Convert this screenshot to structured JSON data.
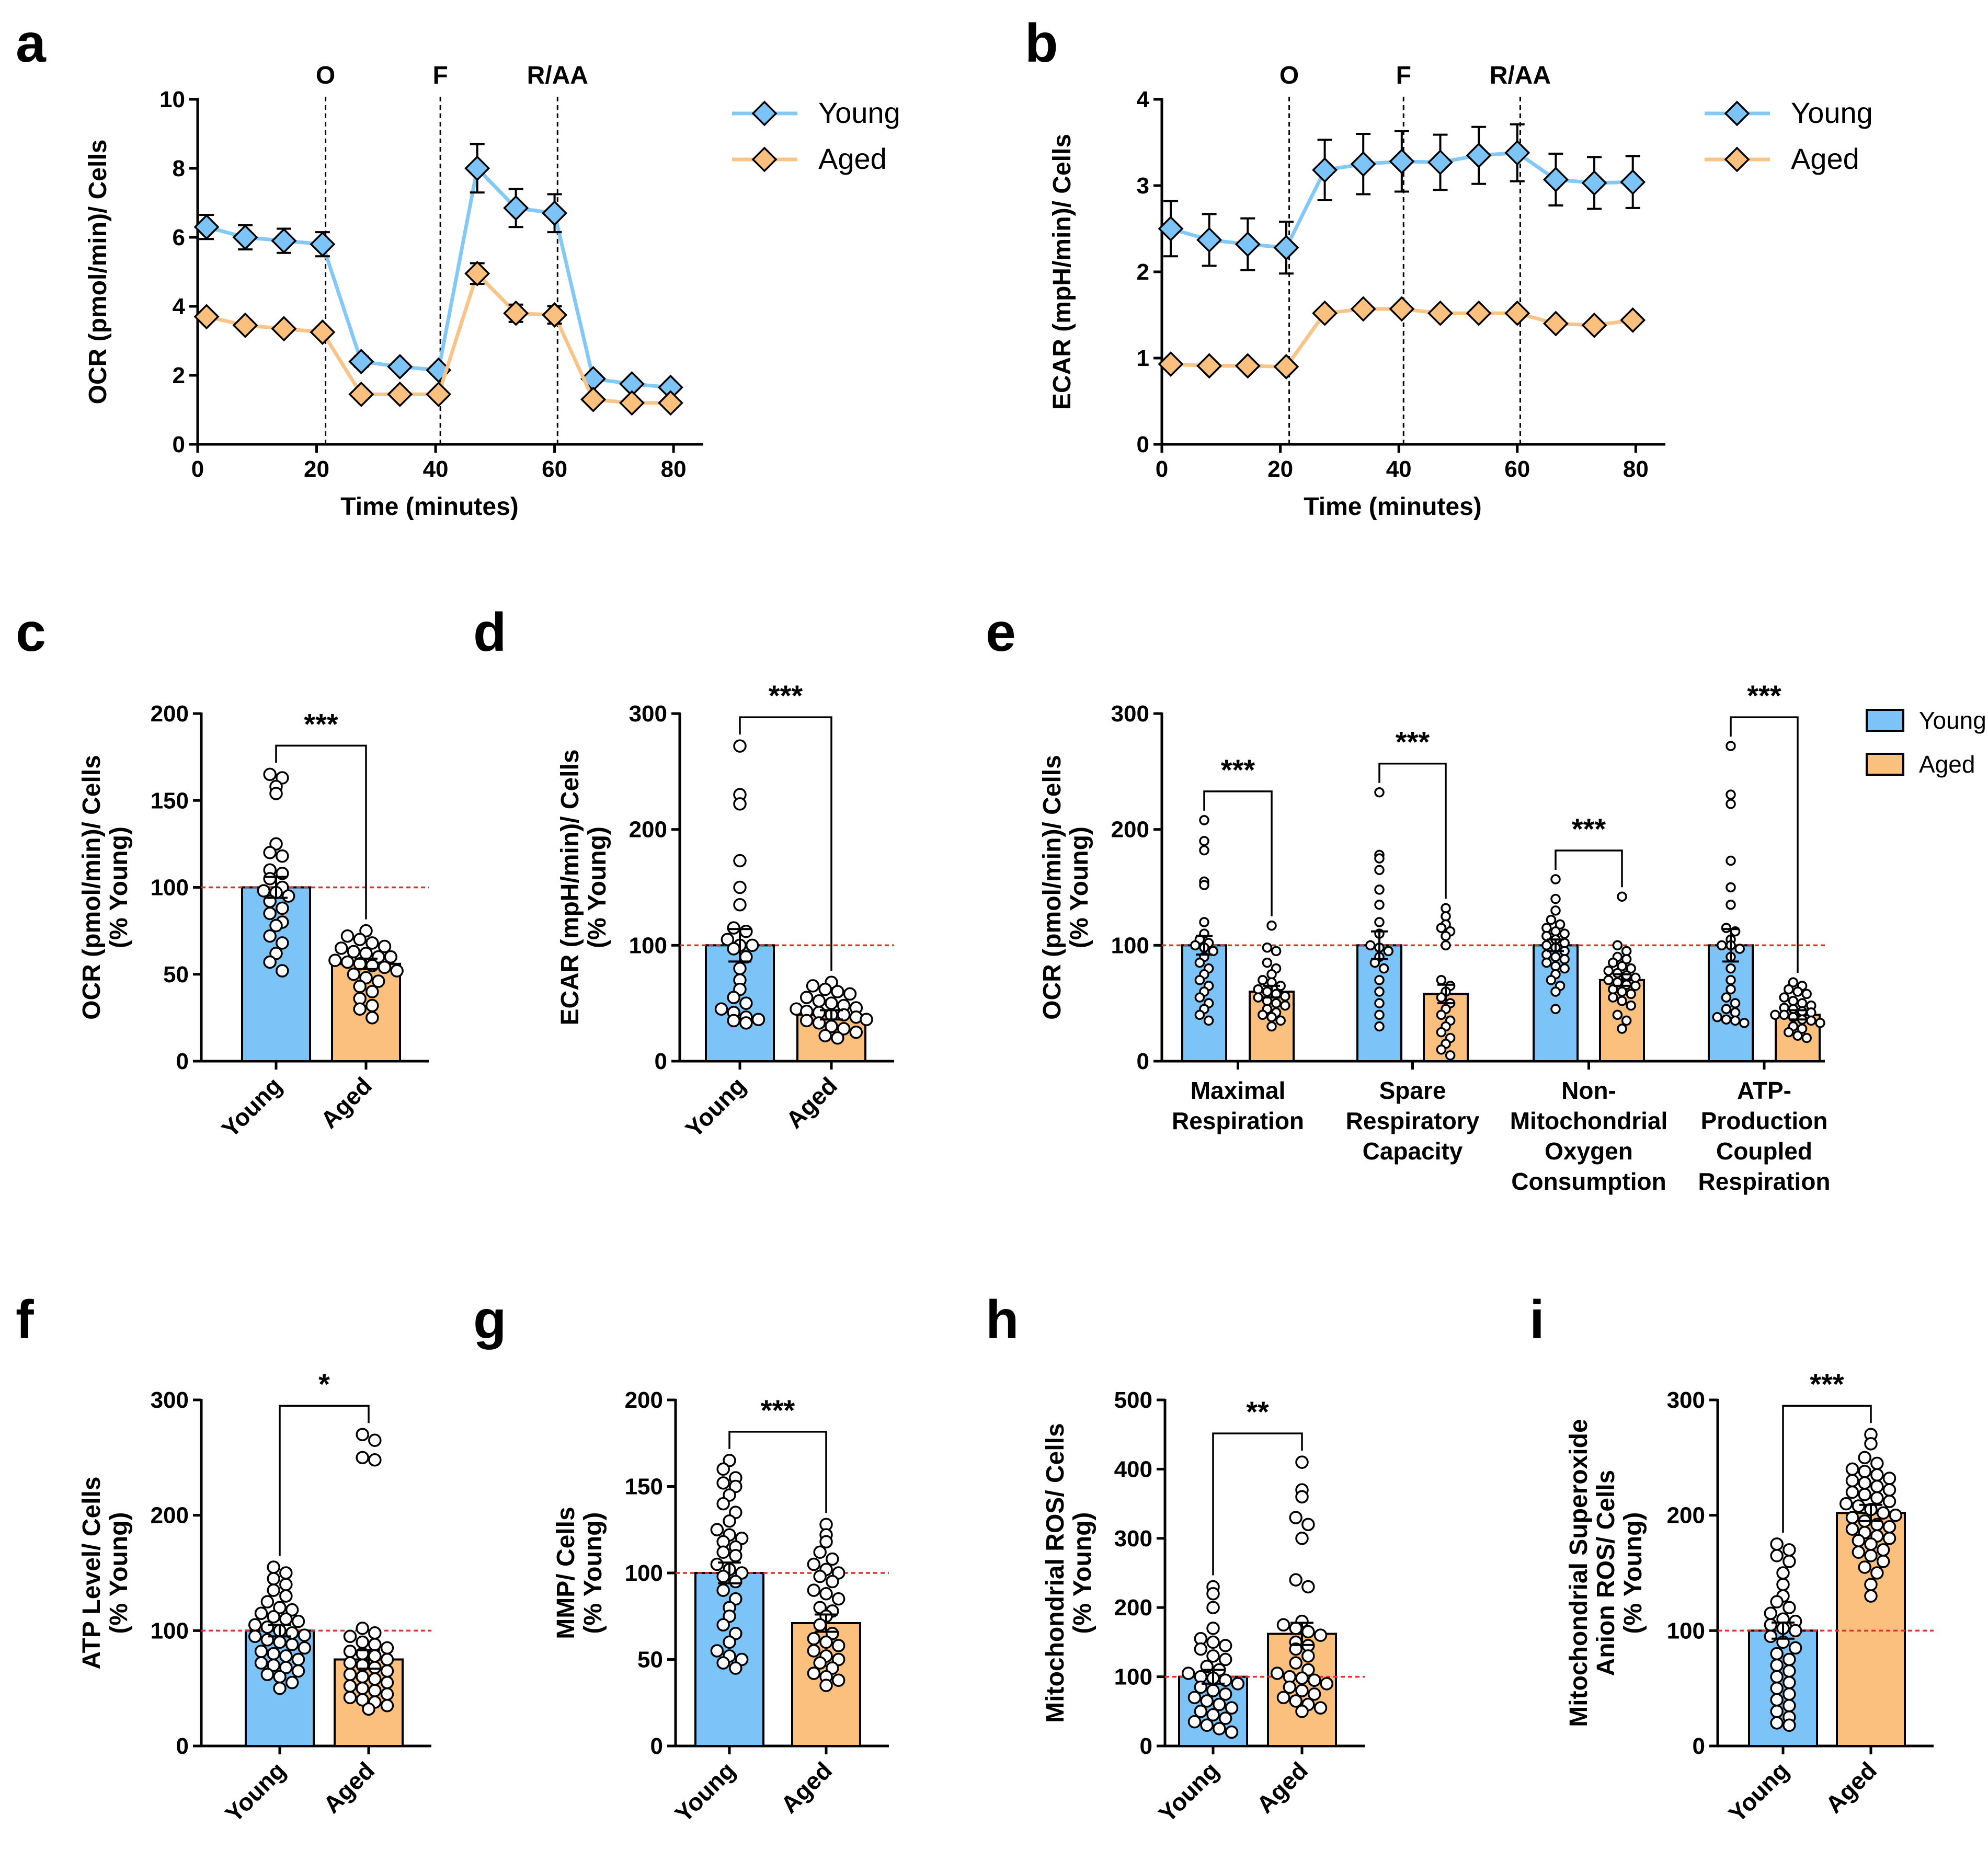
{
  "colors": {
    "young": "#7cc4f8",
    "aged": "#fbbf7e",
    "young_line": "#84c8f6",
    "aged_line": "#f9c48a",
    "ref_line": "#e03030"
  },
  "chart_data": [
    {
      "id": "a",
      "letter": "a",
      "type": "line",
      "xlabel": "Time (minutes)",
      "ylabel": "OCR (pmol/min)/ Cells",
      "xlim": [
        0,
        85
      ],
      "ylim": [
        0,
        10
      ],
      "xticks": [
        "0",
        "20",
        "40",
        "60",
        "80"
      ],
      "yticks": [
        "0",
        "2",
        "4",
        "6",
        "8",
        "10"
      ],
      "injections": [
        {
          "label": "O",
          "x": 21.5
        },
        {
          "label": "F",
          "x": 40.8
        },
        {
          "label": "R/AA",
          "x": 60.5
        }
      ],
      "x": [
        1.5,
        8,
        14.5,
        21,
        27.5,
        34,
        40.5,
        47,
        53.5,
        60,
        66.5,
        73,
        79.5
      ],
      "series": [
        {
          "name": "Young",
          "values": [
            6.3,
            6.0,
            5.9,
            5.8,
            2.4,
            2.25,
            2.15,
            8.0,
            6.85,
            6.7,
            1.9,
            1.75,
            1.65
          ],
          "errors": [
            0.35,
            0.35,
            0.35,
            0.35,
            0.15,
            0.12,
            0.12,
            0.7,
            0.55,
            0.55,
            0.12,
            0.12,
            0.1
          ]
        },
        {
          "name": "Aged",
          "values": [
            3.7,
            3.45,
            3.35,
            3.25,
            1.45,
            1.45,
            1.45,
            4.95,
            3.8,
            3.75,
            1.3,
            1.2,
            1.2
          ],
          "errors": [
            0.1,
            0.1,
            0.1,
            0.1,
            0.05,
            0.05,
            0.05,
            0.3,
            0.25,
            0.25,
            0.05,
            0.05,
            0.05
          ]
        }
      ],
      "legend": [
        "Young",
        "Aged"
      ]
    },
    {
      "id": "b",
      "letter": "b",
      "type": "line",
      "xlabel": "Time (minutes)",
      "ylabel": "ECAR (mpH/min)/ Cells",
      "xlim": [
        0,
        85
      ],
      "ylim": [
        0,
        4
      ],
      "xticks": [
        "0",
        "20",
        "40",
        "60",
        "80"
      ],
      "yticks": [
        "0",
        "1",
        "2",
        "3",
        "4"
      ],
      "injections": [
        {
          "label": "O",
          "x": 21.5
        },
        {
          "label": "F",
          "x": 40.8
        },
        {
          "label": "R/AA",
          "x": 60.5
        }
      ],
      "x": [
        1.5,
        8,
        14.5,
        21,
        27.5,
        34,
        40.5,
        47,
        53.5,
        60,
        66.5,
        73,
        79.5
      ],
      "series": [
        {
          "name": "Young",
          "values": [
            2.5,
            2.37,
            2.32,
            2.28,
            3.18,
            3.25,
            3.28,
            3.27,
            3.35,
            3.38,
            3.07,
            3.03,
            3.04
          ],
          "errors": [
            0.32,
            0.3,
            0.3,
            0.3,
            0.35,
            0.35,
            0.35,
            0.32,
            0.33,
            0.33,
            0.3,
            0.3,
            0.3
          ]
        },
        {
          "name": "Aged",
          "values": [
            0.93,
            0.91,
            0.91,
            0.9,
            1.52,
            1.57,
            1.57,
            1.52,
            1.52,
            1.52,
            1.4,
            1.38,
            1.44
          ],
          "errors": [
            0.04,
            0.04,
            0.04,
            0.04,
            0.05,
            0.05,
            0.05,
            0.05,
            0.05,
            0.05,
            0.05,
            0.05,
            0.05
          ]
        }
      ],
      "legend": [
        "Young",
        "Aged"
      ]
    },
    {
      "id": "c",
      "letter": "c",
      "type": "bar",
      "ylabel": [
        "OCR (pmol/min)/ Cells",
        "(% Young)"
      ],
      "ylim": [
        0,
        200
      ],
      "yticks": [
        "0",
        "50",
        "100",
        "150",
        "200"
      ],
      "categories": [
        "Young",
        "Aged"
      ],
      "values": [
        100,
        56
      ],
      "errors": [
        6,
        3
      ],
      "points": [
        [
          165,
          163,
          158,
          154,
          125,
          120,
          118,
          110,
          108,
          105,
          100,
          98,
          97,
          95,
          92,
          88,
          85,
          80,
          78,
          72,
          68,
          62,
          57,
          52
        ],
        [
          75,
          72,
          70,
          68,
          66,
          65,
          63,
          62,
          60,
          60,
          58,
          57,
          56,
          55,
          54,
          52,
          50,
          48,
          46,
          43,
          40,
          36,
          32,
          30,
          25
        ]
      ],
      "significance": [
        {
          "label": "***"
        }
      ],
      "reference": 100
    },
    {
      "id": "d",
      "letter": "d",
      "type": "bar",
      "ylabel": [
        "ECAR (mpH/min)/ Cells",
        "(% Young)"
      ],
      "ylim": [
        0,
        300
      ],
      "yticks": [
        "0",
        "100",
        "200",
        "300"
      ],
      "categories": [
        "Young",
        "Aged"
      ],
      "values": [
        100,
        40
      ],
      "errors": [
        14,
        4
      ],
      "points": [
        [
          272,
          230,
          222,
          173,
          150,
          135,
          115,
          112,
          105,
          100,
          100,
          97,
          90,
          80,
          70,
          62,
          55,
          50,
          45,
          42,
          38,
          36,
          35,
          33
        ],
        [
          68,
          65,
          62,
          60,
          58,
          55,
          52,
          50,
          48,
          46,
          45,
          43,
          42,
          40,
          40,
          38,
          36,
          35,
          33,
          30,
          28,
          25,
          22,
          20
        ]
      ],
      "significance": [
        {
          "label": "***"
        }
      ],
      "reference": 100
    },
    {
      "id": "e",
      "letter": "e",
      "type": "bar",
      "ylabel": [
        "OCR (pmol/min)/ Cells",
        "(% Young)"
      ],
      "ylim": [
        0,
        300
      ],
      "yticks": [
        "0",
        "100",
        "200",
        "300"
      ],
      "categories": [
        [
          "Maximal",
          "Respiration"
        ],
        [
          "Spare",
          "Respiratory",
          "Capacity"
        ],
        [
          "Non-",
          "Mitochondrial",
          "Oxygen",
          "Consumption"
        ],
        [
          "ATP-",
          "Production",
          "Coupled",
          "Respiration"
        ]
      ],
      "series": [
        {
          "name": "Young",
          "values": [
            100,
            100,
            100,
            100
          ],
          "errors": [
            8,
            12,
            5,
            14
          ]
        },
        {
          "name": "Aged",
          "values": [
            60,
            58,
            70,
            40
          ],
          "errors": [
            5,
            8,
            5,
            4
          ]
        }
      ],
      "points": [
        [
          [
            208,
            190,
            182,
            155,
            152,
            120,
            110,
            105,
            102,
            100,
            98,
            95,
            90,
            85,
            80,
            75,
            70,
            65,
            60,
            55,
            50,
            45,
            40,
            35
          ],
          [
            117,
            98,
            95,
            85,
            80,
            75,
            70,
            68,
            65,
            62,
            60,
            58,
            56,
            55,
            52,
            50,
            48,
            45,
            42,
            40,
            38,
            35,
            30
          ]
        ],
        [
          [
            232,
            178,
            175,
            165,
            148,
            135,
            120,
            110,
            100,
            98,
            95,
            90,
            85,
            80,
            70,
            60,
            50,
            40,
            30
          ],
          [
            132,
            125,
            118,
            115,
            112,
            108,
            100,
            70,
            65,
            60,
            55,
            50,
            45,
            40,
            35,
            30,
            25,
            20,
            15,
            10,
            5
          ]
        ],
        [
          [
            157,
            140,
            130,
            122,
            118,
            115,
            112,
            110,
            108,
            105,
            102,
            100,
            98,
            95,
            92,
            90,
            88,
            85,
            82,
            80,
            75,
            70,
            65,
            60,
            45
          ],
          [
            142,
            100,
            95,
            90,
            88,
            85,
            82,
            80,
            78,
            76,
            74,
            72,
            70,
            68,
            66,
            65,
            62,
            60,
            58,
            55,
            52,
            48,
            40,
            35,
            28
          ]
        ],
        [
          [
            272,
            230,
            222,
            173,
            150,
            135,
            115,
            112,
            105,
            100,
            100,
            97,
            90,
            80,
            70,
            62,
            55,
            50,
            45,
            42,
            38,
            36,
            35,
            33
          ],
          [
            68,
            65,
            62,
            60,
            58,
            55,
            52,
            50,
            48,
            46,
            45,
            43,
            42,
            40,
            40,
            38,
            36,
            35,
            33,
            30,
            28,
            25,
            22,
            20
          ]
        ]
      ],
      "significance": [
        {
          "label": "***"
        },
        {
          "label": "***"
        },
        {
          "label": "***"
        },
        {
          "label": "***"
        }
      ],
      "legend": [
        "Young",
        "Aged"
      ],
      "reference": 100
    },
    {
      "id": "f",
      "letter": "f",
      "type": "bar",
      "ylabel": [
        "ATP Level/ Cells",
        "(% Young)"
      ],
      "ylim": [
        0,
        300
      ],
      "yticks": [
        "0",
        "100",
        "200",
        "300"
      ],
      "categories": [
        "Young",
        "Aged"
      ],
      "values": [
        100,
        75
      ],
      "errors": [
        5,
        8
      ],
      "points": [
        [
          155,
          150,
          145,
          140,
          135,
          130,
          125,
          120,
          118,
          115,
          112,
          110,
          108,
          105,
          103,
          100,
          98,
          96,
          95,
          92,
          90,
          88,
          85,
          82,
          80,
          78,
          75,
          72,
          70,
          68,
          65,
          62,
          60,
          55,
          50
        ],
        [
          270,
          265,
          250,
          248,
          102,
          98,
          95,
          90,
          88,
          85,
          82,
          80,
          78,
          75,
          72,
          70,
          68,
          65,
          62,
          60,
          58,
          55,
          52,
          50,
          48,
          45,
          42,
          40,
          38,
          35,
          32
        ]
      ],
      "significance": [
        {
          "label": "*"
        }
      ],
      "reference": 100
    },
    {
      "id": "g",
      "letter": "g",
      "type": "bar",
      "ylabel": [
        "MMP/ Cells",
        "(% Young)"
      ],
      "ylim": [
        0,
        200
      ],
      "yticks": [
        "0",
        "50",
        "100",
        "150",
        "200"
      ],
      "categories": [
        "Young",
        "Aged"
      ],
      "values": [
        100,
        71
      ],
      "errors": [
        6,
        5
      ],
      "points": [
        [
          165,
          160,
          155,
          152,
          150,
          145,
          140,
          135,
          130,
          125,
          122,
          120,
          118,
          115,
          112,
          110,
          105,
          102,
          100,
          98,
          95,
          90,
          85,
          80,
          75,
          70,
          65,
          60,
          55,
          52,
          50,
          48,
          45
        ],
        [
          128,
          122,
          118,
          112,
          108,
          105,
          102,
          100,
          98,
          95,
          90,
          88,
          85,
          80,
          78,
          75,
          70,
          65,
          62,
          60,
          58,
          55,
          52,
          50,
          48,
          45,
          42,
          40,
          38,
          35
        ]
      ],
      "significance": [
        {
          "label": "***"
        }
      ],
      "reference": 100
    },
    {
      "id": "h",
      "letter": "h",
      "type": "bar",
      "ylabel": [
        "Mitochondrial ROS/ Cells",
        "(% Young)"
      ],
      "ylim": [
        0,
        500
      ],
      "yticks": [
        "0",
        "100",
        "200",
        "300",
        "400",
        "500"
      ],
      "categories": [
        "Young",
        "Aged"
      ],
      "values": [
        100,
        162
      ],
      "errors": [
        10,
        16
      ],
      "points": [
        [
          230,
          220,
          200,
          170,
          155,
          150,
          145,
          140,
          130,
          125,
          115,
          110,
          105,
          100,
          98,
          95,
          90,
          85,
          80,
          75,
          70,
          65,
          60,
          55,
          50,
          45,
          40,
          35,
          30,
          25,
          20
        ],
        [
          410,
          370,
          360,
          330,
          320,
          300,
          240,
          230,
          180,
          175,
          170,
          165,
          160,
          150,
          145,
          140,
          130,
          120,
          110,
          105,
          100,
          98,
          95,
          90,
          85,
          80,
          75,
          70,
          65,
          60,
          55,
          50
        ]
      ],
      "significance": [
        {
          "label": "**"
        }
      ],
      "reference": 100
    },
    {
      "id": "i",
      "letter": "i",
      "type": "bar",
      "ylabel": [
        "Mitochondrial Superoxide",
        "Anion ROS/ Cells",
        "(% Young)"
      ],
      "ylim": [
        0,
        300
      ],
      "yticks": [
        "0",
        "100",
        "200",
        "300"
      ],
      "categories": [
        "Young",
        "Aged"
      ],
      "values": [
        100,
        202
      ],
      "errors": [
        7,
        7
      ],
      "points": [
        [
          175,
          170,
          165,
          160,
          150,
          140,
          130,
          125,
          120,
          115,
          110,
          108,
          105,
          102,
          100,
          95,
          90,
          85,
          80,
          75,
          70,
          65,
          60,
          55,
          50,
          45,
          40,
          35,
          30,
          25,
          20,
          18
        ],
        [
          270,
          262,
          250,
          245,
          240,
          238,
          235,
          232,
          230,
          228,
          225,
          222,
          220,
          218,
          215,
          212,
          210,
          208,
          205,
          202,
          200,
          198,
          195,
          192,
          190,
          188,
          185,
          182,
          180,
          178,
          175,
          170,
          168,
          165,
          160,
          155,
          150,
          140,
          130
        ]
      ],
      "significance": [
        {
          "label": "***"
        }
      ],
      "reference": 100
    }
  ]
}
